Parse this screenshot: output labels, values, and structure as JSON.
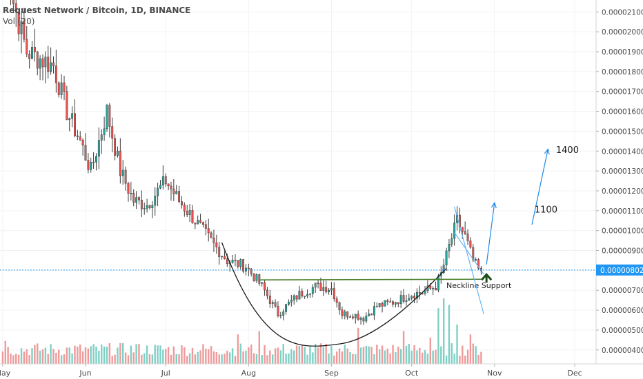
{
  "header": {
    "title": "Request Network / Bitcoin, 1D, BINANCE",
    "volume_label": "Vol (20)"
  },
  "colors": {
    "up": "#26a69a",
    "down": "#ef5350",
    "vol_up": "#7ed0c5",
    "vol_down": "#ef9a9a",
    "current_price_line": "#2196f3",
    "current_price_bg": "#2196f3",
    "neckline": "#4b7f2a",
    "trend": "#1e88e5",
    "arrow": "#1b4d1b"
  },
  "chart_data": {
    "type": "candlestick",
    "symbol": "Request Network / Bitcoin",
    "interval": "1D",
    "exchange": "BINANCE",
    "y_axis": {
      "ticks": [
        4e-06,
        5e-06,
        6e-06,
        7e-06,
        8e-06,
        9e-06,
        1e-05,
        1.1e-05,
        1.2e-05,
        1.3e-05,
        1.4e-05,
        1.5e-05,
        1.6e-05,
        1.7e-05,
        1.8e-05,
        1.9e-05,
        2e-05,
        2.1e-05
      ],
      "tick_labels": [
        "0.00000400",
        "0.00000500",
        "0.00000600",
        "0.00000700",
        "0.00000800",
        "0.00000900",
        "0.00001000",
        "0.00001100",
        "0.00001200",
        "0.00001300",
        "0.00001400",
        "0.00001500",
        "0.00001600",
        "0.00001700",
        "0.00001800",
        "0.00001900",
        "0.00002000",
        "0.00002100"
      ],
      "range": [
        3.3e-06,
        2.16e-05
      ]
    },
    "x_axis": {
      "labels": [
        "May",
        "Jun",
        "Jul",
        "Aug",
        "Sep",
        "Oct",
        "Nov",
        "Dec"
      ],
      "label_dates": [
        "2018-05-01",
        "2018-06-01",
        "2018-07-01",
        "2018-08-01",
        "2018-09-01",
        "2018-10-01",
        "2018-11-01",
        "2018-12-01"
      ],
      "range": [
        "2018-04-30",
        "2018-12-09"
      ]
    },
    "current_price": 8.02e-06,
    "current_price_label": "0.00000802",
    "anchor_closes": [
      [
        "2018-05-01",
        2.6e-05
      ],
      [
        "2018-05-05",
        2.15e-05
      ],
      [
        "2018-05-10",
        1.9e-05
      ],
      [
        "2018-05-20",
        1.83e-05
      ],
      [
        "2018-05-25",
        1.6e-05
      ],
      [
        "2018-05-30",
        1.45e-05
      ],
      [
        "2018-06-03",
        1.3e-05
      ],
      [
        "2018-06-09",
        1.6e-05
      ],
      [
        "2018-06-14",
        1.3e-05
      ],
      [
        "2018-06-19",
        1.15e-05
      ],
      [
        "2018-06-24",
        1.13e-05
      ],
      [
        "2018-07-01",
        1.25e-05
      ],
      [
        "2018-07-06",
        1.15e-05
      ],
      [
        "2018-07-12",
        1.05e-05
      ],
      [
        "2018-07-19",
        9.3e-06
      ],
      [
        "2018-07-24",
        8.5e-06
      ],
      [
        "2018-07-31",
        8.2e-06
      ],
      [
        "2018-08-06",
        7.2e-06
      ],
      [
        "2018-08-12",
        5.8e-06
      ],
      [
        "2018-08-15",
        6.2e-06
      ],
      [
        "2018-08-20",
        6.8e-06
      ],
      [
        "2018-08-26",
        7.2e-06
      ],
      [
        "2018-09-01",
        7.1e-06
      ],
      [
        "2018-09-05",
        5.8e-06
      ],
      [
        "2018-09-09",
        5.8e-06
      ],
      [
        "2018-09-13",
        5.6e-06
      ],
      [
        "2018-09-18",
        6.2e-06
      ],
      [
        "2018-09-24",
        6.4e-06
      ],
      [
        "2018-10-01",
        6.8e-06
      ],
      [
        "2018-10-05",
        6.9e-06
      ],
      [
        "2018-10-10",
        7.2e-06
      ],
      [
        "2018-10-12",
        7.8e-06
      ],
      [
        "2018-10-15",
        9.2e-06
      ],
      [
        "2018-10-18",
        1.05e-05
      ],
      [
        "2018-10-21",
        9.7e-06
      ],
      [
        "2018-10-24",
        8.5e-06
      ],
      [
        "2018-10-27",
        7.8e-06
      ]
    ],
    "volume_series": {
      "name": "Vol (20)",
      "note": "relative daily volume shown at bottom, not labeled on axis",
      "spikes": [
        [
          "2018-05-02",
          0.35
        ],
        [
          "2018-06-20",
          0.3
        ],
        [
          "2018-07-28",
          0.45
        ],
        [
          "2018-08-05",
          0.5
        ],
        [
          "2018-09-11",
          0.55
        ],
        [
          "2018-09-28",
          0.5
        ],
        [
          "2018-10-08",
          0.4
        ],
        [
          "2018-10-11",
          0.85
        ],
        [
          "2018-10-13",
          1.0
        ],
        [
          "2018-10-15",
          0.9
        ],
        [
          "2018-10-18",
          0.6
        ],
        [
          "2018-10-23",
          0.45
        ]
      ]
    },
    "annotations": {
      "neckline_label": "Neckline Support",
      "neckline_price": 7.52e-06,
      "neckline_start": "2018-08-05",
      "neckline_end": "2018-10-27",
      "cup_start": "2018-07-22",
      "cup_end": "2018-10-14",
      "cup_bottom_date": "2018-09-04",
      "cup_bottom_price": 4.3e-06,
      "wedge_top": [
        [
          "2018-10-17",
          1.12e-05
        ],
        [
          "2018-10-28",
          5.8e-06
        ]
      ],
      "wedge_bottom": [
        [
          "2018-10-17",
          9.9e-06
        ],
        [
          "2018-10-28",
          7.8e-06
        ]
      ],
      "target_1_label": "1100",
      "target_2_label": "1400",
      "target_1_arrow": [
        [
          "2018-10-29",
          8.3e-06
        ],
        [
          "2018-11-01",
          1.14e-05
        ]
      ],
      "target_2_arrow": [
        [
          "2018-11-15",
          1.03e-05
        ],
        [
          "2018-11-21",
          1.41e-05
        ]
      ],
      "target_1_label_position": [
        "2018-11-16",
        1.09e-05
      ],
      "target_2_label_position": [
        "2018-11-24",
        1.39e-05
      ]
    }
  }
}
